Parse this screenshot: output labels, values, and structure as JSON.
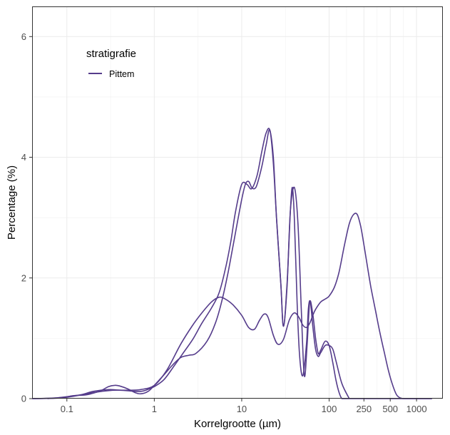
{
  "chart_data": {
    "type": "line",
    "xlabel": "Korrelgrootte (µm)",
    "ylabel": "Percentage (%)",
    "x_scale": "log10",
    "xlim": [
      0.04,
      2000
    ],
    "ylim": [
      0,
      6.5
    ],
    "x_ticks": [
      0.1,
      1,
      10,
      100,
      250,
      500,
      1000
    ],
    "x_tick_labels": [
      "0.1",
      "1",
      "10",
      "100",
      "250",
      "500",
      "1000"
    ],
    "y_ticks": [
      0,
      2,
      4,
      6
    ],
    "y_tick_labels": [
      "0",
      "2",
      "4",
      "6"
    ],
    "grid": true,
    "legend": {
      "title": "stratigrafie",
      "placement": "top-left inside"
    },
    "series": [
      {
        "name": "Pittem",
        "color": "#553c8b",
        "segments": [
          {
            "x": [
              0.04,
              0.07,
              0.11,
              0.15,
              0.2,
              0.3,
              0.4,
              0.5,
              0.6,
              0.7,
              0.8,
              1.0,
              1.3,
              1.7,
              2.2,
              2.8,
              3.5,
              4.5,
              5.5,
              6.5,
              7.5,
              8.5,
              10,
              11.5,
              13,
              15,
              17,
              19,
              21,
              23,
              25,
              28,
              30,
              33,
              36,
              38,
              40,
              43,
              46,
              50,
              55,
              58,
              61,
              65,
              70,
              75,
              80,
              90,
              100,
              110,
              120,
              140,
              170
            ],
            "y": [
              0,
              0.01,
              0.04,
              0.07,
              0.12,
              0.15,
              0.14,
              0.13,
              0.12,
              0.12,
              0.14,
              0.2,
              0.32,
              0.55,
              0.78,
              1.0,
              1.25,
              1.5,
              1.75,
              2.15,
              2.6,
              3.1,
              3.55,
              3.55,
              3.48,
              3.7,
              4.1,
              4.4,
              4.45,
              4.0,
              3.0,
              1.9,
              1.2,
              1.9,
              3.1,
              3.5,
              3.0,
              1.6,
              0.7,
              0.38,
              0.9,
              1.5,
              1.6,
              1.2,
              0.82,
              0.7,
              0.76,
              0.88,
              0.88,
              0.82,
              0.62,
              0.25,
              0
            ]
          },
          {
            "x": [
              0.06,
              0.09,
              0.12,
              0.16,
              0.2,
              0.25,
              0.3,
              0.35,
              0.4,
              0.5,
              0.6,
              0.7,
              0.85,
              1.0,
              1.3,
              1.6,
              2.0,
              2.5,
              3.0,
              4.0,
              5.0,
              6.0,
              7.0,
              8.0,
              9.0,
              10,
              11,
              12,
              13,
              14,
              15,
              17,
              19,
              21,
              23,
              25,
              28,
              30,
              33,
              36,
              40,
              44,
              48,
              52,
              56,
              60,
              65,
              70,
              75,
              80,
              90,
              100,
              110,
              120,
              130,
              140,
              155,
              170,
              185,
              200,
              215,
              230,
              250,
              270,
              300,
              330,
              370,
              420,
              480,
              550,
              620,
              700,
              800,
              1000,
              1500
            ],
            "y": [
              0,
              0.02,
              0.05,
              0.06,
              0.09,
              0.14,
              0.2,
              0.22,
              0.21,
              0.16,
              0.1,
              0.08,
              0.12,
              0.22,
              0.4,
              0.55,
              0.68,
              0.72,
              0.75,
              0.95,
              1.25,
              1.65,
              2.1,
              2.55,
              2.95,
              3.3,
              3.55,
              3.6,
              3.5,
              3.48,
              3.55,
              3.85,
              4.2,
              4.45,
              3.9,
              3.0,
              1.9,
              1.2,
              1.85,
              3.1,
              3.5,
              2.9,
              1.5,
              0.38,
              0.9,
              1.6,
              1.4,
              1.0,
              0.75,
              0.8,
              0.95,
              0.88,
              0.6,
              0.3,
              0.1,
              0,
              0,
              0,
              0,
              0,
              0,
              0,
              0,
              0,
              0,
              0,
              0,
              0,
              0,
              0,
              0,
              0,
              0,
              0,
              0
            ]
          },
          {
            "x": [
              0.04,
              0.08,
              0.12,
              0.18,
              0.25,
              0.35,
              0.5,
              0.7,
              1.0,
              1.4,
              2.0,
              2.7,
              3.5,
              4.5,
              5.5,
              6.5,
              8.0,
              10,
              12,
              14,
              16,
              18,
              20,
              23,
              26,
              30,
              35,
              40,
              45,
              50,
              55,
              60,
              65,
              70,
              80,
              90,
              100,
              115,
              130,
              150,
              170,
              190,
              210,
              230,
              250,
              270,
              300,
              340,
              380,
              430,
              480,
              540,
              600,
              700,
              900,
              1300,
              1500
            ],
            "y": [
              0,
              0.01,
              0.04,
              0.09,
              0.12,
              0.14,
              0.14,
              0.15,
              0.22,
              0.48,
              0.9,
              1.2,
              1.42,
              1.6,
              1.68,
              1.65,
              1.55,
              1.38,
              1.18,
              1.15,
              1.3,
              1.4,
              1.35,
              1.05,
              0.9,
              0.98,
              1.3,
              1.42,
              1.35,
              1.22,
              1.18,
              1.25,
              1.38,
              1.48,
              1.6,
              1.65,
              1.7,
              1.85,
              2.1,
              2.55,
              2.9,
              3.05,
              3.05,
              2.85,
              2.55,
              2.25,
              1.85,
              1.45,
              1.1,
              0.75,
              0.45,
              0.2,
              0.05,
              0,
              0,
              0,
              0
            ]
          }
        ]
      }
    ]
  }
}
